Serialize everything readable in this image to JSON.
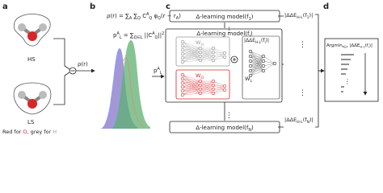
{
  "panel_labels": [
    "a",
    "b",
    "c",
    "d"
  ],
  "panel_a": {
    "states": [
      "HS",
      "LS"
    ],
    "caption": [
      {
        "text": "Red for "
      },
      {
        "text": "O",
        "color": "#d62728"
      },
      {
        "text": ", grey for "
      },
      {
        "text": "H",
        "color": "#999999"
      }
    ]
  },
  "panel_b": {
    "density_label": [
      {
        "text": "ρ(r)"
      }
    ],
    "expansion": [
      {
        "text": "ρ(r) = ∑"
      },
      {
        "text": "A",
        "pos": "sub"
      },
      {
        "text": " ∑"
      },
      {
        "text": "Q",
        "pos": "sub"
      },
      {
        "text": " C"
      },
      {
        "text": "A",
        "pos": "sup"
      },
      {
        "text": "Q",
        "pos": "sub"
      },
      {
        "text": " φ"
      },
      {
        "text": "Q",
        "pos": "sub"
      },
      {
        "text": "(r − r"
      },
      {
        "text": "A",
        "pos": "sub"
      },
      {
        "text": ")"
      }
    ],
    "projection": [
      {
        "text": "p"
      },
      {
        "text": "A",
        "pos": "sup"
      },
      {
        "text": "L",
        "pos": "sub"
      },
      {
        "text": " = ∑"
      },
      {
        "text": "Q∈L",
        "pos": "sub"
      },
      {
        "text": " ||C"
      },
      {
        "text": "A",
        "pos": "sup"
      },
      {
        "text": "Q",
        "pos": "sub"
      },
      {
        "text": "||"
      },
      {
        "text": "2",
        "pos": "sup"
      }
    ],
    "feature_label": [
      {
        "text": "p"
      },
      {
        "text": "A",
        "pos": "sup"
      },
      {
        "text": "L",
        "pos": "sub"
      }
    ]
  },
  "panel_c": {
    "models": [
      [
        {
          "text": "Δ-learning model(f"
        },
        {
          "text": "1",
          "pos": "sub"
        },
        {
          "text": ")"
        }
      ],
      [
        {
          "text": "Δ-learning model(f"
        },
        {
          "text": "i",
          "pos": "sub"
        },
        {
          "text": ")"
        }
      ],
      [
        {
          "text": "Δ-learning model(f"
        },
        {
          "text": "N",
          "pos": "sub"
        },
        {
          "text": ")"
        }
      ]
    ],
    "outputs": [
      [
        {
          "text": "|ΔΔE"
        },
        {
          "text": "H-L",
          "pos": "sub"
        },
        {
          "text": "(f"
        },
        {
          "text": "1",
          "pos": "sub"
        },
        {
          "text": ")|"
        }
      ],
      [
        {
          "text": "|ΔΔE"
        },
        {
          "text": "H-L",
          "pos": "sub"
        },
        {
          "text": "(f"
        },
        {
          "text": "i",
          "pos": "sub"
        },
        {
          "text": ")|"
        }
      ],
      [
        {
          "text": "|ΔΔE"
        },
        {
          "text": "H-L",
          "pos": "sub"
        },
        {
          "text": "(f"
        },
        {
          "text": "N",
          "pos": "sub"
        },
        {
          "text": ")|"
        }
      ]
    ],
    "weights": [
      [
        {
          "text": "W"
        },
        {
          "text": "H",
          "pos": "sub"
        }
      ],
      [
        {
          "text": "W"
        },
        {
          "text": "O",
          "pos": "sub"
        }
      ],
      [
        {
          "text": "W"
        },
        {
          "text": "L",
          "pos": "sub"
        }
      ]
    ],
    "ellipsis": "⋮"
  },
  "panel_d": {
    "selection": [
      {
        "text": "Argmin"
      },
      {
        "text": "f∈F",
        "pos": "sub"
      },
      {
        "text": " |ΔΔE"
      },
      {
        "text": "H-L",
        "pos": "sub"
      },
      {
        "text": "(f"
      },
      {
        "text": "i",
        "pos": "sub"
      },
      {
        "text": ")|"
      }
    ]
  }
}
